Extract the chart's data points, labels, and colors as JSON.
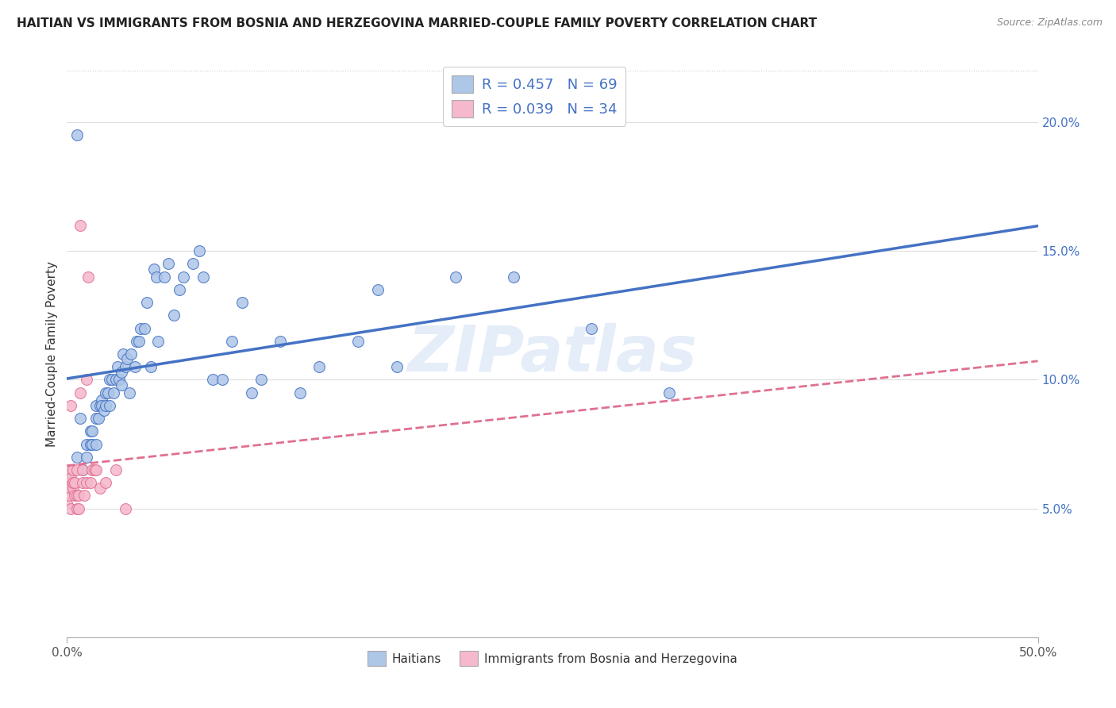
{
  "title": "HAITIAN VS IMMIGRANTS FROM BOSNIA AND HERZEGOVINA MARRIED-COUPLE FAMILY POVERTY CORRELATION CHART",
  "source": "Source: ZipAtlas.com",
  "ylabel": "Married-Couple Family Poverty",
  "xlim": [
    0.0,
    0.5
  ],
  "ylim": [
    0.0,
    0.22
  ],
  "xtick_positions": [
    0.0,
    0.5
  ],
  "xticklabels": [
    "0.0%",
    "50.0%"
  ],
  "yticks_right": [
    0.05,
    0.1,
    0.15,
    0.2
  ],
  "ytick_right_labels": [
    "5.0%",
    "10.0%",
    "15.0%",
    "20.0%"
  ],
  "legend_r1": "R = 0.457",
  "legend_n1": "N = 69",
  "legend_r2": "R = 0.039",
  "legend_n2": "N = 34",
  "color_blue": "#aec6e8",
  "color_pink": "#f5b8cc",
  "line_blue": "#4472c4",
  "line_pink": "#e07090",
  "watermark": "ZIPatlas",
  "blue_x": [
    0.005,
    0.005,
    0.007,
    0.008,
    0.01,
    0.01,
    0.012,
    0.012,
    0.013,
    0.013,
    0.015,
    0.015,
    0.015,
    0.016,
    0.017,
    0.018,
    0.018,
    0.019,
    0.02,
    0.02,
    0.021,
    0.022,
    0.022,
    0.023,
    0.024,
    0.025,
    0.026,
    0.027,
    0.028,
    0.028,
    0.029,
    0.03,
    0.031,
    0.032,
    0.033,
    0.035,
    0.036,
    0.037,
    0.038,
    0.04,
    0.041,
    0.043,
    0.045,
    0.046,
    0.047,
    0.05,
    0.052,
    0.055,
    0.058,
    0.06,
    0.065,
    0.068,
    0.07,
    0.075,
    0.08,
    0.085,
    0.09,
    0.095,
    0.1,
    0.11,
    0.12,
    0.13,
    0.15,
    0.16,
    0.17,
    0.2,
    0.23,
    0.27,
    0.31
  ],
  "blue_y": [
    0.195,
    0.07,
    0.085,
    0.065,
    0.07,
    0.075,
    0.08,
    0.075,
    0.08,
    0.075,
    0.075,
    0.085,
    0.09,
    0.085,
    0.09,
    0.092,
    0.09,
    0.088,
    0.09,
    0.095,
    0.095,
    0.09,
    0.1,
    0.1,
    0.095,
    0.1,
    0.105,
    0.1,
    0.098,
    0.103,
    0.11,
    0.105,
    0.108,
    0.095,
    0.11,
    0.105,
    0.115,
    0.115,
    0.12,
    0.12,
    0.13,
    0.105,
    0.143,
    0.14,
    0.115,
    0.14,
    0.145,
    0.125,
    0.135,
    0.14,
    0.145,
    0.15,
    0.14,
    0.1,
    0.1,
    0.115,
    0.13,
    0.095,
    0.1,
    0.115,
    0.095,
    0.105,
    0.115,
    0.135,
    0.105,
    0.14,
    0.14,
    0.12,
    0.095
  ],
  "pink_x": [
    0.0,
    0.001,
    0.001,
    0.001,
    0.002,
    0.002,
    0.002,
    0.002,
    0.003,
    0.003,
    0.003,
    0.004,
    0.004,
    0.005,
    0.005,
    0.005,
    0.006,
    0.006,
    0.007,
    0.007,
    0.008,
    0.008,
    0.009,
    0.01,
    0.01,
    0.011,
    0.012,
    0.013,
    0.014,
    0.015,
    0.017,
    0.02,
    0.025,
    0.03
  ],
  "pink_y": [
    0.052,
    0.055,
    0.06,
    0.065,
    0.05,
    0.058,
    0.062,
    0.09,
    0.058,
    0.06,
    0.065,
    0.055,
    0.06,
    0.05,
    0.055,
    0.065,
    0.05,
    0.055,
    0.095,
    0.16,
    0.06,
    0.065,
    0.055,
    0.06,
    0.1,
    0.14,
    0.06,
    0.065,
    0.065,
    0.065,
    0.058,
    0.06,
    0.065,
    0.05
  ]
}
